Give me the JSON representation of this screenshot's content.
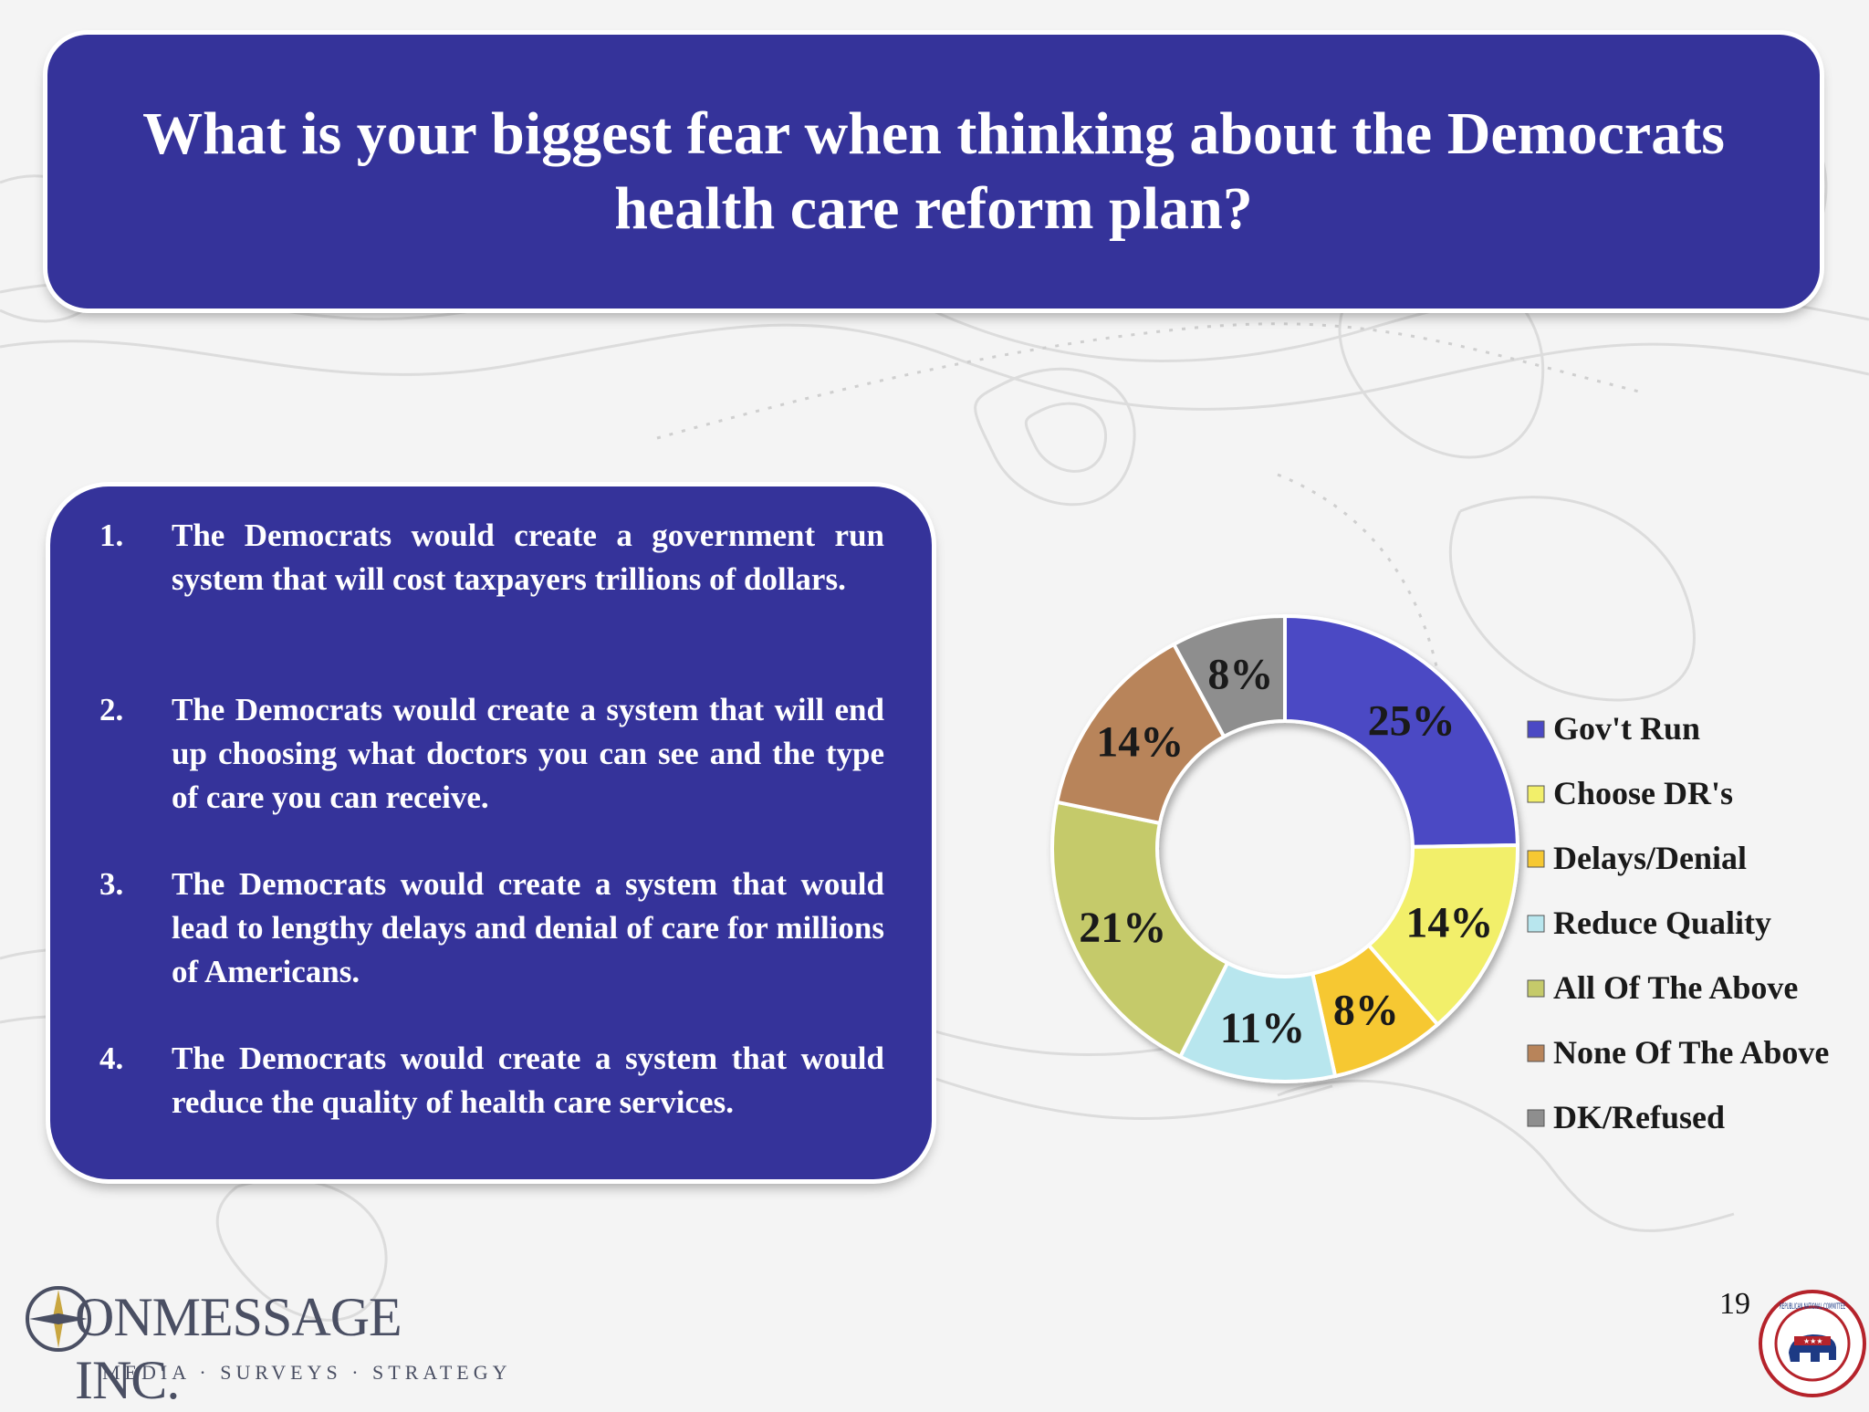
{
  "title": {
    "line1": "What is your biggest fear when thinking about the Democrats",
    "line2": "health care reform plan?"
  },
  "options": [
    {
      "num": "1.",
      "text": "The Democrats would create a government run system that will cost taxpayers trillions of dollars."
    },
    {
      "num": "2.",
      "text": "The Democrats would create a system that will end up choosing what doctors you can see and the type of care you can receive."
    },
    {
      "num": "3.",
      "text": "The Democrats would create a system that would lead to lengthy delays and denial of care for millions of Americans."
    },
    {
      "num": "4.",
      "text": "The Democrats would create a system that would reduce the quality of health care services."
    }
  ],
  "chart_data": {
    "type": "pie",
    "donut": true,
    "categories": [
      "Gov't Run",
      "Choose DR's",
      "Delays/Denial",
      "Reduce Quality",
      "All Of The Above",
      "None Of The Above",
      "DK/Refused"
    ],
    "values": [
      25,
      14,
      8,
      11,
      21,
      14,
      8
    ],
    "labels": [
      "25%",
      "14%",
      "8%",
      "11%",
      "21%",
      "14%",
      "8%"
    ],
    "colors": [
      "#4b49c4",
      "#f2ef6a",
      "#f6c832",
      "#b8e6ee",
      "#c5ca6a",
      "#b8845a",
      "#8e8e8e"
    ],
    "legend_position": "right"
  },
  "footer": {
    "logo_name": "ONMESSAGE INC.",
    "logo_tagline": "MEDIA · SURVEYS · STRATEGY",
    "page_number": "19",
    "seal_text": "REPUBLICAN NATIONAL COMMITTEE"
  }
}
